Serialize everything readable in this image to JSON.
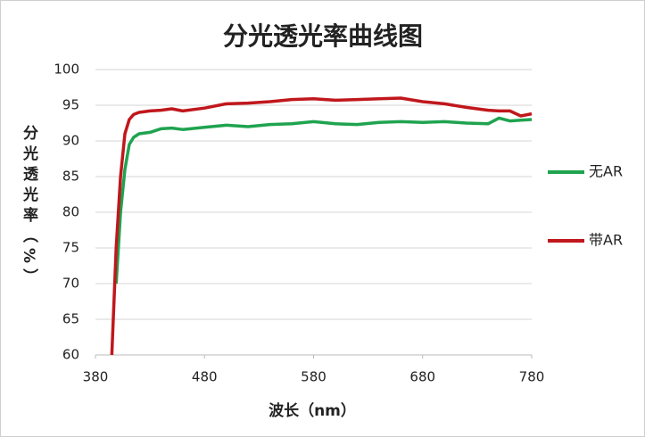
{
  "chart_data": {
    "type": "line",
    "title": "分光透光率曲线图",
    "x_label": "波长（nm）",
    "y_label": "分光透光率（%）",
    "x": [
      395,
      399,
      403,
      407,
      411,
      415,
      420,
      430,
      440,
      450,
      460,
      480,
      500,
      520,
      540,
      560,
      580,
      600,
      620,
      640,
      660,
      680,
      700,
      720,
      740,
      750,
      760,
      770,
      780
    ],
    "series": [
      {
        "name": "无AR",
        "color": "#1fa34f",
        "values": [
          null,
          70,
          80,
          86,
          89.5,
          90.5,
          91,
          91.2,
          91.7,
          91.8,
          91.6,
          91.9,
          92.2,
          92.0,
          92.3,
          92.4,
          92.7,
          92.4,
          92.3,
          92.6,
          92.7,
          92.6,
          92.7,
          92.5,
          92.4,
          93.2,
          92.8,
          92.9,
          93.0
        ]
      },
      {
        "name": "带AR",
        "color": "#c0171c",
        "values": [
          60,
          75,
          85,
          91,
          93,
          93.7,
          94,
          94.2,
          94.3,
          94.5,
          94.2,
          94.6,
          95.2,
          95.3,
          95.5,
          95.8,
          95.9,
          95.7,
          95.8,
          95.9,
          96.0,
          95.5,
          95.2,
          94.7,
          94.3,
          94.2,
          94.2,
          93.5,
          93.8
        ]
      }
    ],
    "xlim": [
      380,
      780
    ],
    "xticks": [
      380,
      480,
      580,
      680,
      780
    ],
    "ylim": [
      60,
      100
    ],
    "yticks": [
      60,
      65,
      70,
      75,
      80,
      85,
      90,
      95,
      100
    ],
    "grid": true,
    "legend": "right"
  }
}
